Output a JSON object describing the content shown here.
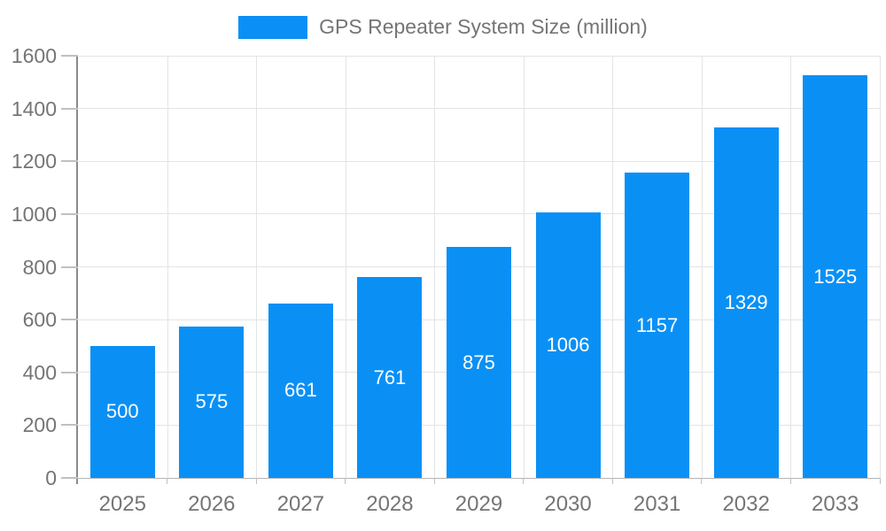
{
  "chart_data": {
    "type": "bar",
    "title": "GPS Repeater System Size (million)",
    "legend": "GPS Repeater System Size (million)",
    "legend_position": "top-center",
    "categories": [
      "2025",
      "2026",
      "2027",
      "2028",
      "2029",
      "2030",
      "2031",
      "2032",
      "2033"
    ],
    "series": [
      {
        "name": "GPS Repeater System Size (million)",
        "values": [
          500,
          575,
          661,
          761,
          875,
          1006,
          1157,
          1329,
          1525
        ]
      }
    ],
    "bar_value_labels": [
      "500",
      "575",
      "661",
      "761",
      "875",
      "1006",
      "1157",
      "1329",
      "1525"
    ],
    "xlabel": "",
    "ylabel": "",
    "ylim": [
      0,
      1600
    ],
    "y_ticks": [
      0,
      200,
      400,
      600,
      800,
      1000,
      1200,
      1400,
      1600
    ],
    "grid": "on",
    "colors": {
      "bar": "#0a90f5",
      "bar_label": "#ffffff",
      "axis_text": "#757575",
      "grid": "#e4e4e4",
      "axis_line": "#8a8a8a",
      "baseline": "#b5b5b5",
      "tick": "#c0c0c0",
      "background": "#ffffff"
    }
  }
}
